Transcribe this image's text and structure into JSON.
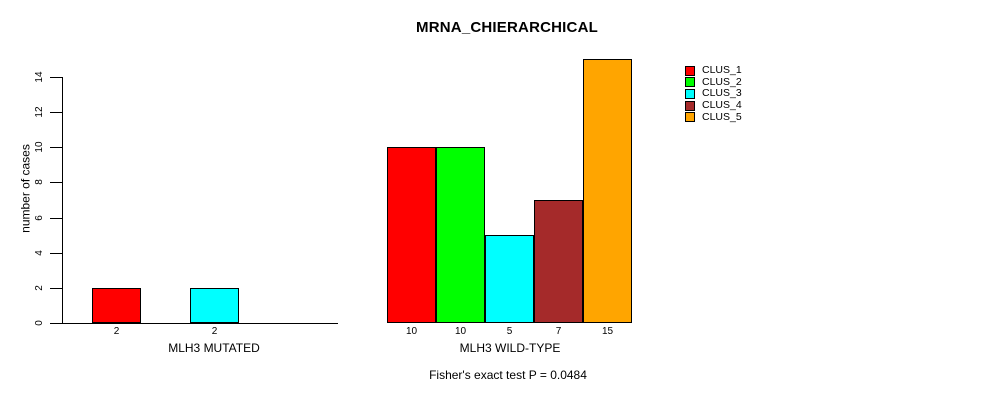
{
  "chart_data": {
    "type": "bar",
    "title": "MRNA_CHIERARCHICAL",
    "ylabel": "number of cases",
    "xlabel": "",
    "ylim": [
      0,
      15
    ],
    "yticks": [
      0,
      2,
      4,
      6,
      8,
      10,
      12,
      14
    ],
    "grid": false,
    "legend_position": "top-right-outside",
    "series": [
      "CLUS_1",
      "CLUS_2",
      "CLUS_3",
      "CLUS_4",
      "CLUS_5"
    ],
    "colors": [
      "#FF0000",
      "#00FF00",
      "#00FFFF",
      "#A52A2A",
      "#FFA500"
    ],
    "groups": [
      {
        "label": "MLH3 MUTATED",
        "values": [
          2,
          0,
          2,
          0,
          0
        ]
      },
      {
        "label": "MLH3 WILD-TYPE",
        "values": [
          10,
          10,
          5,
          7,
          15
        ]
      }
    ],
    "annotation": "Fisher's exact test P = 0.0484"
  }
}
